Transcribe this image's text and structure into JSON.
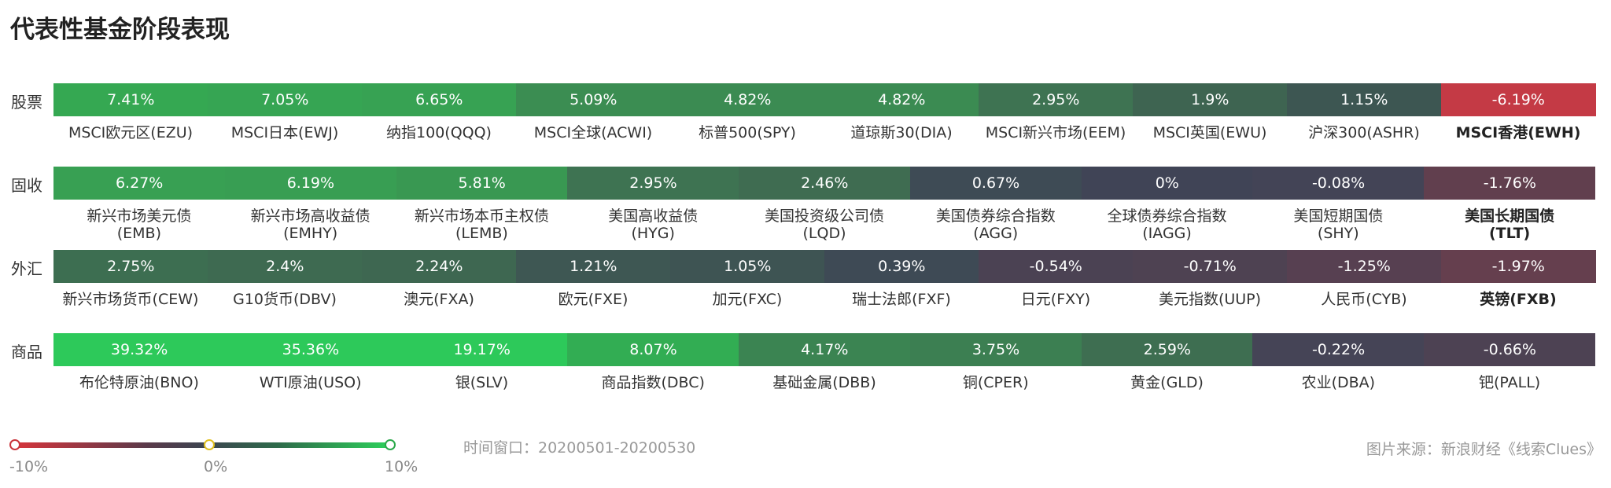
{
  "title": "代表性基金阶段表现",
  "chart_data": {
    "type": "heatmap",
    "title": "代表性基金阶段表现",
    "rows": [
      {
        "category": "股票",
        "cells": [
          {
            "value": "7.41%",
            "label": "MSCI欧元区(EZU)",
            "color": "#35a852"
          },
          {
            "value": "7.05%",
            "label": "MSCI日本(EWJ)",
            "color": "#36a553"
          },
          {
            "value": "6.65%",
            "label": "纳指100(QQQ)",
            "color": "#37a253"
          },
          {
            "value": "5.09%",
            "label": "MSCI全球(ACWI)",
            "color": "#3b8d52"
          },
          {
            "value": "4.82%",
            "label": "标普500(SPY)",
            "color": "#3b8b52"
          },
          {
            "value": "4.82%",
            "label": "道琼斯30(DIA)",
            "color": "#3b8b52"
          },
          {
            "value": "2.95%",
            "label": "MSCI新兴市场(EEM)",
            "color": "#3e7352"
          },
          {
            "value": "1.9%",
            "label": "MSCI英国(EWU)",
            "color": "#3e6451"
          },
          {
            "value": "1.15%",
            "label": "沪深300(ASHR)",
            "color": "#3d5652"
          },
          {
            "value": "-6.19%",
            "label": "MSCI香港(EWH)",
            "color": "#c43a45",
            "bold": true
          }
        ]
      },
      {
        "category": "固收",
        "cells": [
          {
            "value": "6.27%",
            "label": "新兴市场美元债\n(EMB)",
            "color": "#38a053"
          },
          {
            "value": "6.19%",
            "label": "新兴市场高收益债\n(EMHY)",
            "color": "#389e53"
          },
          {
            "value": "5.81%",
            "label": "新兴市场本币主权债\n(LEMB)",
            "color": "#399852"
          },
          {
            "value": "2.95%",
            "label": "美国高收益债\n(HYG)",
            "color": "#3e7352"
          },
          {
            "value": "2.46%",
            "label": "美国投资级公司债\n(LQD)",
            "color": "#3f6c51"
          },
          {
            "value": "0.67%",
            "label": "美国债券综合指数\n(AGG)",
            "color": "#3e4b55"
          },
          {
            "value": "0%",
            "label": "全球债券综合指数\n(IAGG)",
            "color": "#404456"
          },
          {
            "value": "-0.08%",
            "label": "美国短期国债\n(SHY)",
            "color": "#434456"
          },
          {
            "value": "-1.76%",
            "label": "美国长期国债\n(TLT)",
            "color": "#613f4e",
            "bold": true
          }
        ]
      },
      {
        "category": "外汇",
        "cells": [
          {
            "value": "2.75%",
            "label": "新兴市场货币(CEW)",
            "color": "#3d6e51"
          },
          {
            "value": "2.4%",
            "label": "G10货币(DBV)",
            "color": "#3e6a51"
          },
          {
            "value": "2.24%",
            "label": "澳元(FXA)",
            "color": "#3e6751"
          },
          {
            "value": "1.21%",
            "label": "欧元(FXE)",
            "color": "#3e5753"
          },
          {
            "value": "1.05%",
            "label": "加元(FXC)",
            "color": "#3e5453"
          },
          {
            "value": "0.39%",
            "label": "瑞士法郎(FXF)",
            "color": "#3e4a55"
          },
          {
            "value": "-0.54%",
            "label": "日元(FXY)",
            "color": "#4b4253"
          },
          {
            "value": "-0.71%",
            "label": "美元指数(UUP)",
            "color": "#4e4252"
          },
          {
            "value": "-1.25%",
            "label": "人民币(CYB)",
            "color": "#574051"
          },
          {
            "value": "-1.97%",
            "label": "英镑(FXB)",
            "color": "#653f4e",
            "bold": true
          }
        ]
      },
      {
        "category": "商品",
        "cells": [
          {
            "value": "39.32%",
            "label": "布伦特原油(BNO)",
            "color": "#2dc95a"
          },
          {
            "value": "35.36%",
            "label": "WTI原油(USO)",
            "color": "#2dc95a"
          },
          {
            "value": "19.17%",
            "label": "银(SLV)",
            "color": "#2dc95a"
          },
          {
            "value": "8.07%",
            "label": "商品指数(DBC)",
            "color": "#32ad53"
          },
          {
            "value": "4.17%",
            "label": "基础金属(DBB)",
            "color": "#3b8452"
          },
          {
            "value": "3.75%",
            "label": "铜(CPER)",
            "color": "#3c7f52"
          },
          {
            "value": "2.59%",
            "label": "黄金(GLD)",
            "color": "#3e6e51"
          },
          {
            "value": "-0.22%",
            "label": "农业(DBA)",
            "color": "#454456"
          },
          {
            "value": "-0.66%",
            "label": "钯(PALL)",
            "color": "#4d4253"
          }
        ]
      }
    ],
    "legend": {
      "min": "-10%",
      "mid": "0%",
      "max": "10%",
      "colors": {
        "negative": "#d6353c",
        "neutral": "#3d4450",
        "positive": "#2dd15b"
      }
    }
  },
  "footer": {
    "time_window": "时间窗口：20200501-20200530",
    "source": "图片来源：新浪财经《线索Clues》"
  }
}
